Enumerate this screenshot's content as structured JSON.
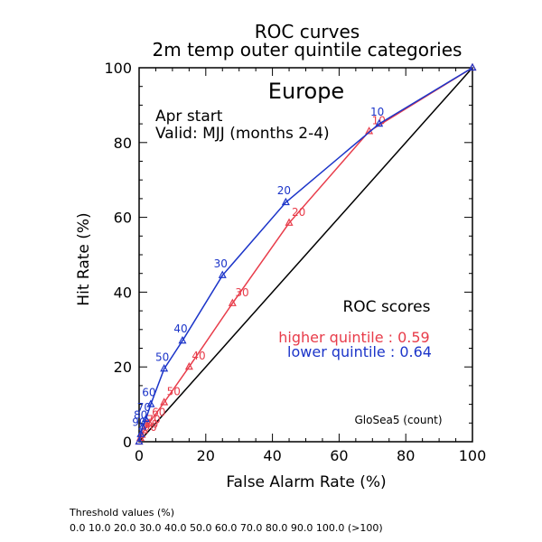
{
  "chart_data": {
    "type": "line",
    "title": "ROC curves",
    "subtitle": "2m temp outer quintile categories",
    "region": "Europe",
    "info_lines": [
      "Apr start",
      "Valid: MJJ (months 2-4)"
    ],
    "xlabel": "False Alarm Rate (%)",
    "ylabel": "Hit Rate (%)",
    "xlim": [
      0,
      100
    ],
    "ylim": [
      0,
      100
    ],
    "xticks": [
      0,
      20,
      40,
      60,
      80,
      100
    ],
    "yticks": [
      0,
      20,
      40,
      60,
      80,
      100
    ],
    "grid": false,
    "diagonal": true,
    "scores_title": "ROC scores",
    "model_label": "GloSea5 (count)",
    "series": [
      {
        "name": "higher quintile",
        "score_label": "higher quintile : 0.59",
        "color": "#e83c4a",
        "points": [
          {
            "x": 100,
            "y": 100,
            "label": ""
          },
          {
            "x": 69,
            "y": 83,
            "label": "10"
          },
          {
            "x": 45,
            "y": 58.5,
            "label": "20"
          },
          {
            "x": 28,
            "y": 37,
            "label": "30"
          },
          {
            "x": 15,
            "y": 20,
            "label": "40"
          },
          {
            "x": 7.5,
            "y": 10.5,
            "label": "50"
          },
          {
            "x": 3,
            "y": 5,
            "label": "60"
          },
          {
            "x": 1.5,
            "y": 3,
            "label": "70"
          },
          {
            "x": 0.8,
            "y": 1.8,
            "label": "80"
          },
          {
            "x": 0.4,
            "y": 1,
            "label": "90"
          },
          {
            "x": 0,
            "y": 0,
            "label": ""
          }
        ]
      },
      {
        "name": "lower quintile",
        "score_label": "lower quintile : 0.64",
        "color": "#1c35c9",
        "points": [
          {
            "x": 100,
            "y": 100,
            "label": ""
          },
          {
            "x": 72,
            "y": 85,
            "label": "10"
          },
          {
            "x": 44,
            "y": 64,
            "label": "20"
          },
          {
            "x": 25,
            "y": 44.5,
            "label": "30"
          },
          {
            "x": 13,
            "y": 27,
            "label": "40"
          },
          {
            "x": 7.5,
            "y": 19.5,
            "label": "50"
          },
          {
            "x": 3.5,
            "y": 10,
            "label": "60"
          },
          {
            "x": 2,
            "y": 6,
            "label": "70"
          },
          {
            "x": 1,
            "y": 4,
            "label": "80"
          },
          {
            "x": 0.5,
            "y": 2,
            "label": "90"
          },
          {
            "x": 0,
            "y": 0,
            "label": ""
          }
        ]
      }
    ]
  },
  "footer": {
    "title": "Threshold values (%)",
    "values": "0.0 10.0 20.0 30.0 40.0 50.0 60.0 70.0 80.0 90.0 100.0 (>100)"
  }
}
